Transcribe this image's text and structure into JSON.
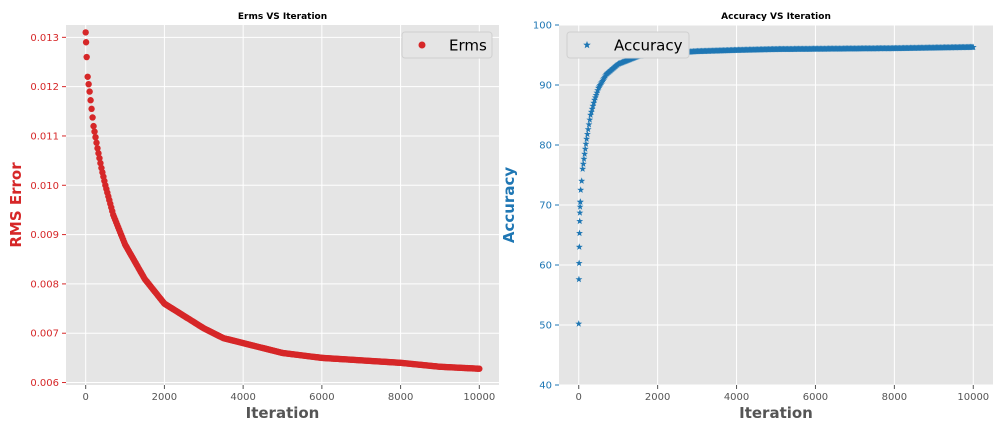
{
  "colors": {
    "erms": "#d62728",
    "accuracy": "#1f77b4",
    "plot_bg": "#e5e5e5",
    "grid": "#ffffff",
    "xlabel": "#555555",
    "tick_x": "#555555"
  },
  "chart_data": [
    {
      "type": "scatter",
      "title": "Erms VS Iteration",
      "xlabel": "Iteration",
      "ylabel": "RMS Error",
      "xlim": [
        -500,
        10500
      ],
      "ylim": [
        0.00595,
        0.01325
      ],
      "xticks": [
        0,
        2000,
        4000,
        6000,
        8000,
        10000
      ],
      "xtick_labels": [
        "0",
        "2000",
        "4000",
        "6000",
        "8000",
        "10000"
      ],
      "yticks": [
        0.006,
        0.007,
        0.008,
        0.009,
        0.01,
        0.011,
        0.012,
        0.013
      ],
      "ytick_labels": [
        "0.006",
        "0.007",
        "0.008",
        "0.009",
        "0.010",
        "0.011",
        "0.012",
        "0.013"
      ],
      "grid": true,
      "legend": "top-right",
      "series": [
        {
          "name": "Erms",
          "marker": "circle",
          "x": [
            0,
            10,
            25,
            50,
            100,
            200,
            300,
            400,
            500,
            700,
            1000,
            1500,
            2000,
            2500,
            3000,
            3500,
            4000,
            5000,
            6000,
            7000,
            8000,
            9000,
            10000
          ],
          "y": [
            0.0131,
            0.0129,
            0.0126,
            0.0122,
            0.0119,
            0.0112,
            0.01075,
            0.01035,
            0.01,
            0.0094,
            0.0088,
            0.0081,
            0.0076,
            0.00735,
            0.0071,
            0.0069,
            0.0068,
            0.0066,
            0.0065,
            0.00645,
            0.0064,
            0.00632,
            0.00628
          ]
        }
      ]
    },
    {
      "type": "scatter",
      "title": "Accuracy VS Iteration",
      "xlabel": "Iteration",
      "ylabel": "Accuracy",
      "xlim": [
        -500,
        10500
      ],
      "ylim": [
        40,
        100
      ],
      "xticks": [
        0,
        2000,
        4000,
        6000,
        8000,
        10000
      ],
      "xtick_labels": [
        "0",
        "2000",
        "4000",
        "6000",
        "8000",
        "10000"
      ],
      "yticks": [
        40,
        50,
        60,
        70,
        80,
        90,
        100
      ],
      "ytick_labels": [
        "40",
        "50",
        "60",
        "70",
        "80",
        "90",
        "100"
      ],
      "grid": true,
      "legend": "top-left",
      "series": [
        {
          "name": "Accuracy",
          "marker": "star",
          "x": [
            0,
            5,
            10,
            15,
            20,
            25,
            30,
            35,
            40,
            50,
            75,
            100,
            150,
            200,
            300,
            400,
            500,
            700,
            1000,
            1500,
            2000,
            2500,
            3000,
            4000,
            5000,
            6000,
            7000,
            8000,
            9000,
            10000
          ],
          "y": [
            50.2,
            57.6,
            60.3,
            63.0,
            65.3,
            67.3,
            68.7,
            69.7,
            70.5,
            72.5,
            74.0,
            76.0,
            78.5,
            81.0,
            85.0,
            87.5,
            89.5,
            91.8,
            93.5,
            94.8,
            95.2,
            95.4,
            95.6,
            95.8,
            95.95,
            96.0,
            96.05,
            96.1,
            96.2,
            96.3
          ]
        }
      ]
    }
  ]
}
